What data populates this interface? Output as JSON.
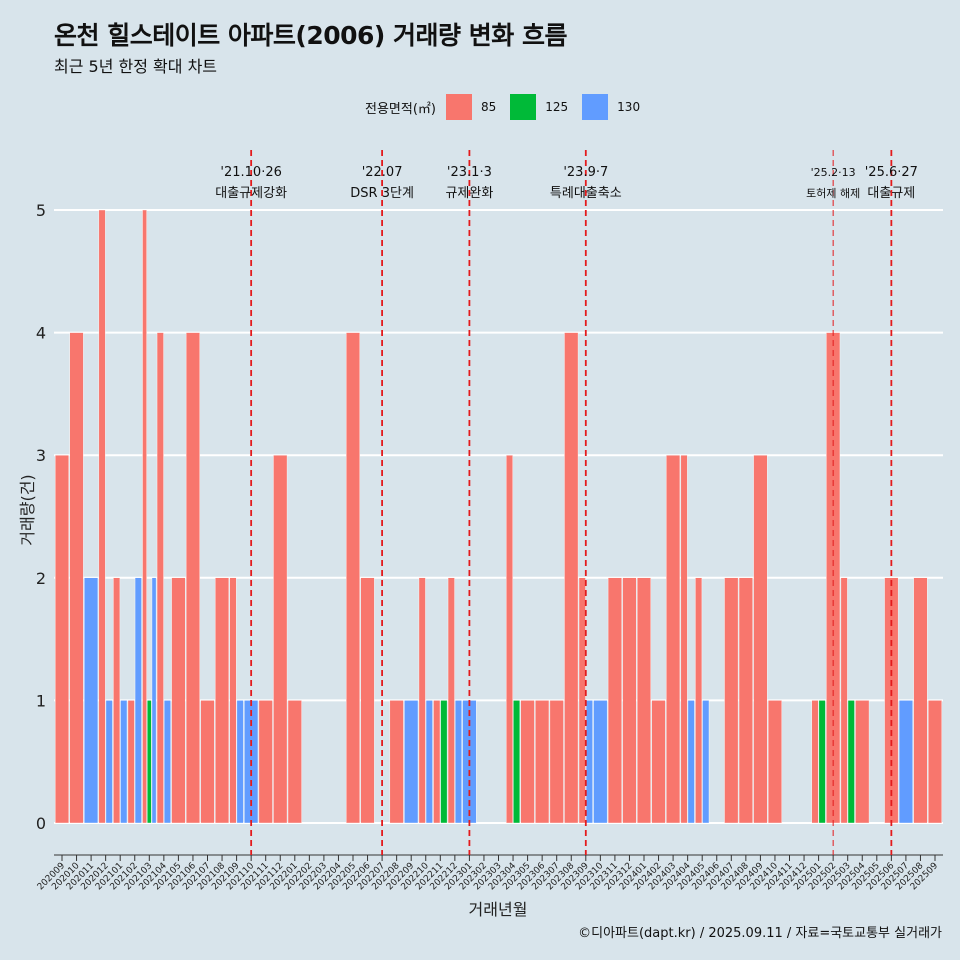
{
  "title": "온천 힐스테이트 아파트(2006) 거래량 변화 흐름",
  "subtitle": "최근 5년 한정 확대 차트",
  "caption": "©디아파트(dapt.kr) / 2025.09.11 / 자료=국토교통부 실거래가",
  "legend": {
    "title": "전용면적(㎡)",
    "items": [
      {
        "label": "85",
        "color": "#f8766d"
      },
      {
        "label": "125",
        "color": "#00ba38"
      },
      {
        "label": "130",
        "color": "#619cff"
      }
    ]
  },
  "chart_data": {
    "type": "bar",
    "stacking": "dodge",
    "xlabel": "거래년월",
    "ylabel": "거래량(건)",
    "ylim": [
      0,
      5
    ],
    "yticks": [
      0,
      1,
      2,
      3,
      4,
      5
    ],
    "grid": true,
    "legend_position": "top",
    "categories": [
      "202009",
      "202010",
      "202011",
      "202012",
      "202101",
      "202102",
      "202103",
      "202104",
      "202105",
      "202106",
      "202107",
      "202108",
      "202109",
      "202110",
      "202111",
      "202112",
      "202201",
      "202202",
      "202203",
      "202204",
      "202205",
      "202206",
      "202207",
      "202208",
      "202209",
      "202210",
      "202211",
      "202212",
      "202301",
      "202302",
      "202303",
      "202304",
      "202305",
      "202306",
      "202307",
      "202308",
      "202309",
      "202310",
      "202311",
      "202312",
      "202401",
      "202402",
      "202403",
      "202404",
      "202405",
      "202406",
      "202407",
      "202408",
      "202409",
      "202410",
      "202411",
      "202412",
      "202501",
      "202502",
      "202503",
      "202504",
      "202505",
      "202506",
      "202507",
      "202508",
      "202509"
    ],
    "series": [
      {
        "name": "85",
        "color": "#f8766d",
        "values": [
          3,
          4,
          0,
          5,
          2,
          1,
          5,
          4,
          2,
          4,
          1,
          2,
          2,
          0,
          1,
          3,
          1,
          0,
          0,
          0,
          4,
          2,
          0,
          1,
          0,
          2,
          1,
          2,
          0,
          0,
          0,
          3,
          1,
          1,
          1,
          4,
          2,
          0,
          2,
          2,
          2,
          1,
          3,
          3,
          2,
          0,
          2,
          2,
          3,
          1,
          0,
          0,
          1,
          4,
          2,
          1,
          0,
          2,
          0,
          2,
          1
        ]
      },
      {
        "name": "125",
        "color": "#00ba38",
        "values": [
          0,
          0,
          0,
          0,
          0,
          0,
          1,
          0,
          0,
          0,
          0,
          0,
          0,
          0,
          0,
          0,
          0,
          0,
          0,
          0,
          0,
          0,
          0,
          0,
          0,
          0,
          1,
          0,
          0,
          0,
          0,
          1,
          0,
          0,
          0,
          0,
          0,
          0,
          0,
          0,
          0,
          0,
          0,
          0,
          0,
          0,
          0,
          0,
          0,
          0,
          0,
          0,
          1,
          0,
          1,
          0,
          0,
          0,
          0,
          0,
          0
        ]
      },
      {
        "name": "130",
        "color": "#619cff",
        "values": [
          0,
          0,
          2,
          1,
          1,
          2,
          2,
          1,
          0,
          0,
          0,
          0,
          1,
          1,
          0,
          0,
          0,
          0,
          0,
          0,
          0,
          0,
          0,
          0,
          1,
          1,
          0,
          1,
          1,
          0,
          0,
          0,
          0,
          0,
          0,
          0,
          1,
          1,
          0,
          0,
          0,
          0,
          0,
          1,
          1,
          0,
          0,
          0,
          0,
          0,
          0,
          0,
          0,
          0,
          0,
          0,
          0,
          0,
          1,
          0,
          0
        ]
      }
    ],
    "events": [
      {
        "date": "202110",
        "label1": "'21.10·26",
        "label2": "대출규제강화"
      },
      {
        "date": "202207",
        "label1": "'22.07",
        "label2": "DSR 3단계"
      },
      {
        "date": "202301",
        "label1": "'23.1·3",
        "label2": "규제완화"
      },
      {
        "date": "202309",
        "label1": "'23.9·7",
        "label2": "특례대출축소"
      },
      {
        "date": "202502",
        "label1": "'25.2·13",
        "label2": "토허제 해제"
      },
      {
        "date": "202506",
        "label1": "'25.6·27",
        "label2": "대출규제"
      }
    ]
  }
}
